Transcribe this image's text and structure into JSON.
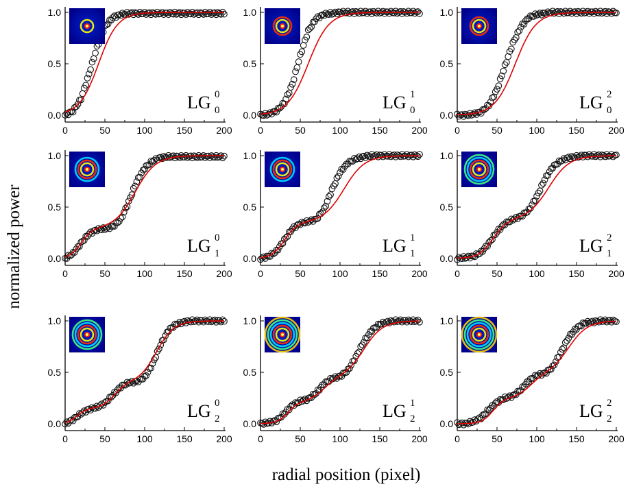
{
  "figure": {
    "ylabel": "normalized power",
    "xlabel": "radial position (pixel)"
  },
  "chart_data": [
    {
      "type": "scatter",
      "label": {
        "base": "LG",
        "l": "0",
        "p": "0"
      },
      "xlim": [
        0,
        200
      ],
      "ylim": [
        0,
        1
      ],
      "xticks": [
        "0",
        "50",
        "100",
        "150",
        "200"
      ],
      "yticks": [
        "0.0",
        "0.5",
        "1.0"
      ],
      "series": [
        {
          "kind": "data-circles",
          "color": "#000000"
        },
        {
          "kind": "fit-line",
          "color": "#e00000"
        }
      ],
      "plateaus": [
        1.0
      ],
      "centers": [
        42
      ],
      "widths": [
        12
      ],
      "inset_rings": 1,
      "x": [
        0,
        10,
        20,
        30,
        40,
        50,
        60,
        70,
        80,
        90,
        100,
        110,
        120,
        130,
        140,
        150,
        160,
        170,
        180,
        190,
        200
      ],
      "y": [
        0.0,
        0.04,
        0.16,
        0.4,
        0.66,
        0.86,
        0.95,
        0.98,
        0.99,
        0.99,
        0.99,
        0.99,
        0.99,
        0.99,
        0.99,
        0.99,
        0.99,
        0.99,
        0.99,
        0.99,
        0.99
      ]
    },
    {
      "type": "scatter",
      "label": {
        "base": "LG",
        "l": "1",
        "p": "0"
      },
      "xlim": [
        0,
        200
      ],
      "ylim": [
        0,
        1
      ],
      "xticks": [
        "0",
        "50",
        "100",
        "150",
        "200"
      ],
      "yticks": [
        "0.0",
        "0.5",
        "1.0"
      ],
      "series": [
        {
          "kind": "data-circles",
          "color": "#000000"
        },
        {
          "kind": "fit-line",
          "color": "#e00000"
        }
      ],
      "plateaus": [
        1.0
      ],
      "centers": [
        60
      ],
      "widths": [
        13
      ],
      "inset_rings": 2,
      "x": [
        0,
        10,
        20,
        30,
        40,
        50,
        60,
        70,
        80,
        90,
        100,
        110,
        120,
        130,
        140,
        150,
        160,
        170,
        180,
        190,
        200
      ],
      "y": [
        0.0,
        0.01,
        0.04,
        0.12,
        0.3,
        0.58,
        0.82,
        0.94,
        0.98,
        0.99,
        1.0,
        1.0,
        1.0,
        1.0,
        1.0,
        1.0,
        1.0,
        1.0,
        1.0,
        1.0,
        1.0
      ]
    },
    {
      "type": "scatter",
      "label": {
        "base": "LG",
        "l": "2",
        "p": "0"
      },
      "xlim": [
        0,
        200
      ],
      "ylim": [
        0,
        1
      ],
      "xticks": [
        "0",
        "50",
        "100",
        "150",
        "200"
      ],
      "yticks": [
        "0.0",
        "0.5",
        "1.0"
      ],
      "series": [
        {
          "kind": "data-circles",
          "color": "#000000"
        },
        {
          "kind": "fit-line",
          "color": "#e00000"
        }
      ],
      "plateaus": [
        1.0
      ],
      "centers": [
        73
      ],
      "widths": [
        13
      ],
      "inset_rings": 2,
      "x": [
        0,
        10,
        20,
        30,
        40,
        50,
        60,
        70,
        80,
        90,
        100,
        110,
        120,
        130,
        140,
        150,
        160,
        170,
        180,
        190,
        200
      ],
      "y": [
        0.0,
        0.0,
        0.01,
        0.03,
        0.1,
        0.25,
        0.48,
        0.7,
        0.86,
        0.95,
        0.98,
        0.99,
        1.0,
        1.0,
        1.0,
        1.0,
        1.0,
        1.0,
        1.0,
        1.0,
        1.0
      ]
    },
    {
      "type": "scatter",
      "label": {
        "base": "LG",
        "l": "0",
        "p": "1"
      },
      "xlim": [
        0,
        200
      ],
      "ylim": [
        0,
        1
      ],
      "xticks": [
        "0",
        "50",
        "100",
        "150",
        "200"
      ],
      "yticks": [
        "0.0",
        "0.5",
        "1.0"
      ],
      "series": [
        {
          "kind": "data-circles",
          "color": "#000000"
        },
        {
          "kind": "fit-line",
          "color": "#e00000"
        }
      ],
      "plateaus": [
        0.29,
        1.0
      ],
      "centers": [
        20,
        88
      ],
      "widths": [
        7,
        13
      ],
      "inset_rings": 3,
      "x": [
        0,
        10,
        20,
        30,
        40,
        50,
        60,
        70,
        80,
        90,
        100,
        110,
        120,
        130,
        140,
        150,
        160,
        170,
        180,
        190,
        200
      ],
      "y": [
        0.0,
        0.05,
        0.15,
        0.24,
        0.28,
        0.29,
        0.31,
        0.38,
        0.55,
        0.75,
        0.88,
        0.95,
        0.98,
        0.99,
        0.99,
        0.99,
        0.99,
        0.99,
        0.99,
        0.99,
        0.99
      ]
    },
    {
      "type": "scatter",
      "label": {
        "base": "LG",
        "l": "1",
        "p": "1"
      },
      "xlim": [
        0,
        200
      ],
      "ylim": [
        0,
        1
      ],
      "xticks": [
        "0",
        "50",
        "100",
        "150",
        "200"
      ],
      "yticks": [
        "0.0",
        "0.5",
        "1.0"
      ],
      "series": [
        {
          "kind": "data-circles",
          "color": "#000000"
        },
        {
          "kind": "fit-line",
          "color": "#e00000"
        }
      ],
      "plateaus": [
        0.35,
        1.0
      ],
      "centers": [
        30,
        105
      ],
      "widths": [
        8,
        13
      ],
      "inset_rings": 3,
      "x": [
        0,
        10,
        20,
        30,
        40,
        50,
        60,
        70,
        80,
        90,
        100,
        110,
        120,
        130,
        140,
        150,
        160,
        170,
        180,
        190,
        200
      ],
      "y": [
        0.0,
        0.02,
        0.07,
        0.18,
        0.29,
        0.34,
        0.36,
        0.38,
        0.48,
        0.67,
        0.84,
        0.93,
        0.97,
        0.99,
        1.0,
        1.0,
        1.0,
        1.0,
        1.0,
        1.0,
        1.0
      ]
    },
    {
      "type": "scatter",
      "label": {
        "base": "LG",
        "l": "2",
        "p": "1"
      },
      "xlim": [
        0,
        200
      ],
      "ylim": [
        0,
        1
      ],
      "xticks": [
        "0",
        "50",
        "100",
        "150",
        "200"
      ],
      "yticks": [
        "0.0",
        "0.5",
        "1.0"
      ],
      "series": [
        {
          "kind": "data-circles",
          "color": "#000000"
        },
        {
          "kind": "fit-line",
          "color": "#e00000"
        }
      ],
      "plateaus": [
        0.38,
        1.0
      ],
      "centers": [
        45,
        115
      ],
      "widths": [
        9,
        13
      ],
      "inset_rings": 4,
      "x": [
        0,
        10,
        20,
        30,
        40,
        50,
        60,
        70,
        80,
        90,
        100,
        110,
        120,
        130,
        140,
        150,
        160,
        170,
        180,
        190,
        200
      ],
      "y": [
        0.0,
        0.01,
        0.02,
        0.06,
        0.15,
        0.26,
        0.34,
        0.38,
        0.41,
        0.47,
        0.6,
        0.77,
        0.89,
        0.95,
        0.98,
        0.99,
        1.0,
        1.0,
        1.0,
        1.0,
        1.0
      ]
    },
    {
      "type": "scatter",
      "label": {
        "base": "LG",
        "l": "0",
        "p": "2"
      },
      "xlim": [
        0,
        200
      ],
      "ylim": [
        0,
        1
      ],
      "xticks": [
        "0",
        "50",
        "100",
        "150",
        "200"
      ],
      "yticks": [
        "0.0",
        "0.5",
        "1.0"
      ],
      "series": [
        {
          "kind": "data-circles",
          "color": "#000000"
        },
        {
          "kind": "fit-line",
          "color": "#e00000"
        }
      ],
      "plateaus": [
        0.15,
        0.4,
        1.0
      ],
      "centers": [
        15,
        62,
        115
      ],
      "widths": [
        6,
        8,
        11
      ],
      "inset_rings": 4,
      "x": [
        0,
        10,
        20,
        30,
        40,
        50,
        60,
        70,
        80,
        90,
        100,
        110,
        120,
        130,
        140,
        150,
        160,
        170,
        180,
        190,
        200
      ],
      "y": [
        0.0,
        0.04,
        0.1,
        0.14,
        0.16,
        0.2,
        0.28,
        0.36,
        0.4,
        0.41,
        0.45,
        0.58,
        0.77,
        0.91,
        0.97,
        0.99,
        1.0,
        1.0,
        1.0,
        1.0,
        1.0
      ]
    },
    {
      "type": "scatter",
      "label": {
        "base": "LG",
        "l": "1",
        "p": "2"
      },
      "xlim": [
        0,
        200
      ],
      "ylim": [
        0,
        1
      ],
      "xticks": [
        "0",
        "50",
        "100",
        "150",
        "200"
      ],
      "yticks": [
        "0.0",
        "0.5",
        "1.0"
      ],
      "series": [
        {
          "kind": "data-circles",
          "color": "#000000"
        },
        {
          "kind": "fit-line",
          "color": "#e00000"
        }
      ],
      "plateaus": [
        0.22,
        0.45,
        1.0
      ],
      "centers": [
        35,
        80,
        130
      ],
      "widths": [
        7,
        9,
        12
      ],
      "inset_rings": 5,
      "x": [
        0,
        10,
        20,
        30,
        40,
        50,
        60,
        70,
        80,
        90,
        100,
        110,
        120,
        130,
        140,
        150,
        160,
        170,
        180,
        190,
        200
      ],
      "y": [
        0.0,
        0.01,
        0.03,
        0.1,
        0.18,
        0.22,
        0.24,
        0.3,
        0.39,
        0.44,
        0.46,
        0.52,
        0.65,
        0.8,
        0.91,
        0.97,
        0.99,
        1.0,
        1.0,
        1.0,
        1.0
      ]
    },
    {
      "type": "scatter",
      "label": {
        "base": "LG",
        "l": "2",
        "p": "2"
      },
      "xlim": [
        0,
        200
      ],
      "ylim": [
        0,
        1
      ],
      "xticks": [
        "0",
        "50",
        "100",
        "150",
        "200"
      ],
      "yticks": [
        "0.0",
        "0.5",
        "1.0"
      ],
      "series": [
        {
          "kind": "data-circles",
          "color": "#000000"
        },
        {
          "kind": "fit-line",
          "color": "#e00000"
        }
      ],
      "plateaus": [
        0.25,
        0.48,
        1.0
      ],
      "centers": [
        45,
        92,
        140
      ],
      "widths": [
        7,
        9,
        12
      ],
      "inset_rings": 5,
      "x": [
        0,
        10,
        20,
        30,
        40,
        50,
        60,
        70,
        80,
        90,
        100,
        110,
        120,
        130,
        140,
        150,
        160,
        170,
        180,
        190,
        200
      ],
      "y": [
        0.0,
        0.0,
        0.02,
        0.06,
        0.14,
        0.21,
        0.25,
        0.27,
        0.33,
        0.42,
        0.47,
        0.49,
        0.55,
        0.69,
        0.84,
        0.93,
        0.98,
        0.99,
        1.0,
        1.0,
        1.0
      ]
    }
  ]
}
